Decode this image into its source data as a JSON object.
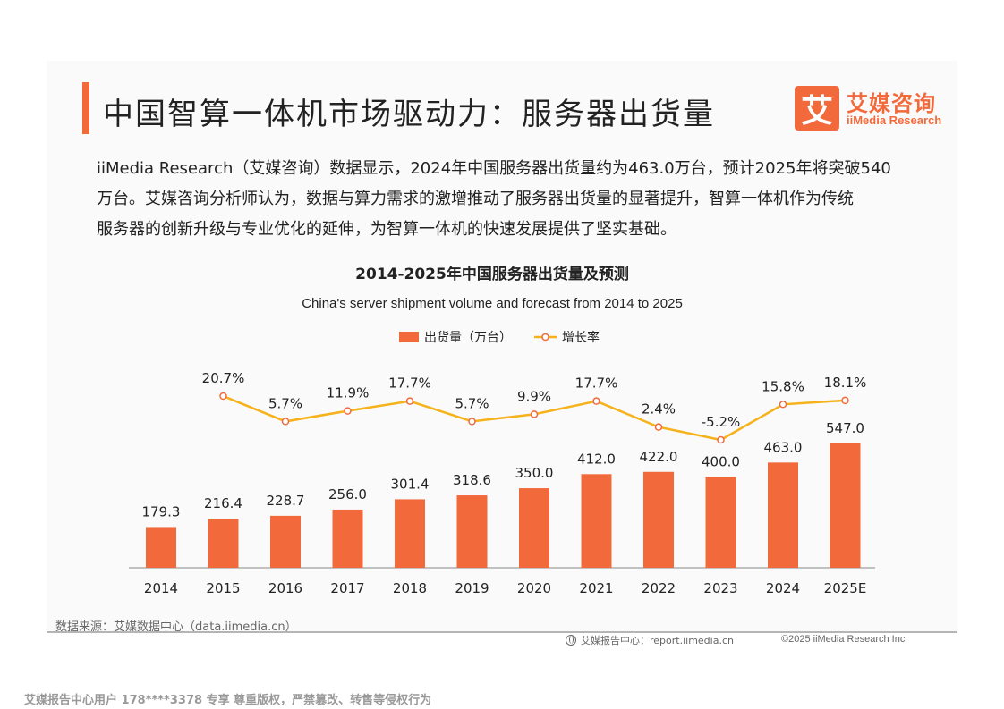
{
  "header": {
    "title": "中国智算一体机市场驱动力：服务器出货量",
    "logo_mark": "艾",
    "logo_cn": "艾媒咨询",
    "logo_en": "iiMedia Research"
  },
  "description": {
    "line1": "iiMedia Research（艾媒咨询）数据显示，2024年中国服务器出货量约为463.0万台，预计2025年将突破540",
    "line2": "万台。艾媒咨询分析师认为，数据与算力需求的激增推动了服务器出货量的显著提升，智算一体机作为传统",
    "line3": "服务器的创新升级与专业优化的延伸，为智算一体机的快速发展提供了坚实基础。"
  },
  "chart_data": {
    "type": "bar",
    "title": "2014-2025年中国服务器出货量及预测",
    "subtitle": "China's server shipment volume and forecast from 2014 to 2025",
    "categories": [
      "2014",
      "2015",
      "2016",
      "2017",
      "2018",
      "2019",
      "2020",
      "2021",
      "2022",
      "2023",
      "2024",
      "2025E"
    ],
    "series": [
      {
        "name": "出货量（万台）",
        "type": "bar",
        "values": [
          179.3,
          216.4,
          228.7,
          256.0,
          301.4,
          318.6,
          350.0,
          412.0,
          422.0,
          400.0,
          463.0,
          547.0
        ],
        "labels": [
          "179.3",
          "216.4",
          "228.7",
          "256.0",
          "301.4",
          "318.6",
          "350.0",
          "412.0",
          "422.0",
          "400.0",
          "463.0",
          "547.0"
        ],
        "color": "#f26a3c"
      },
      {
        "name": "增长率",
        "type": "line",
        "values": [
          null,
          20.7,
          5.7,
          11.9,
          17.7,
          5.7,
          9.9,
          17.7,
          2.4,
          -5.2,
          15.8,
          18.1
        ],
        "labels": [
          "",
          "20.7%",
          "5.7%",
          "11.9%",
          "17.7%",
          "5.7%",
          "9.9%",
          "17.7%",
          "2.4%",
          "-5.2%",
          "15.8%",
          "18.1%"
        ],
        "color": "#f5b21b"
      }
    ],
    "ylim": [
      0,
      547.0
    ],
    "growth_range": [
      -5.2,
      20.7
    ],
    "legend_position": "top-center",
    "grid": false
  },
  "footer": {
    "source": "数据来源：艾媒数据中心（data.iimedia.cn）",
    "site": "艾媒报告中心：report.iimedia.cn",
    "copyright": "©2025  iiMedia Research  Inc",
    "watermark": "艾媒报告中心用户 178****3378 专享 尊重版权，严禁篡改、转售等侵权行为"
  }
}
